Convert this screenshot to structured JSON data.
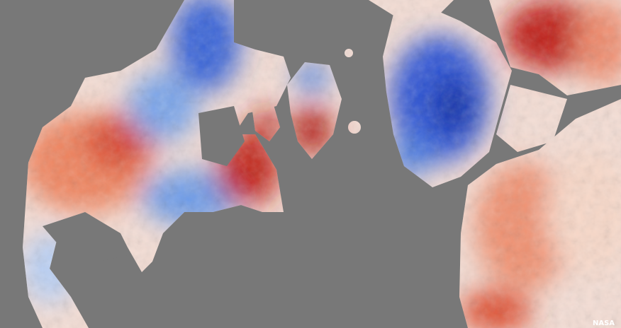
{
  "watermark": "NASA"
}
